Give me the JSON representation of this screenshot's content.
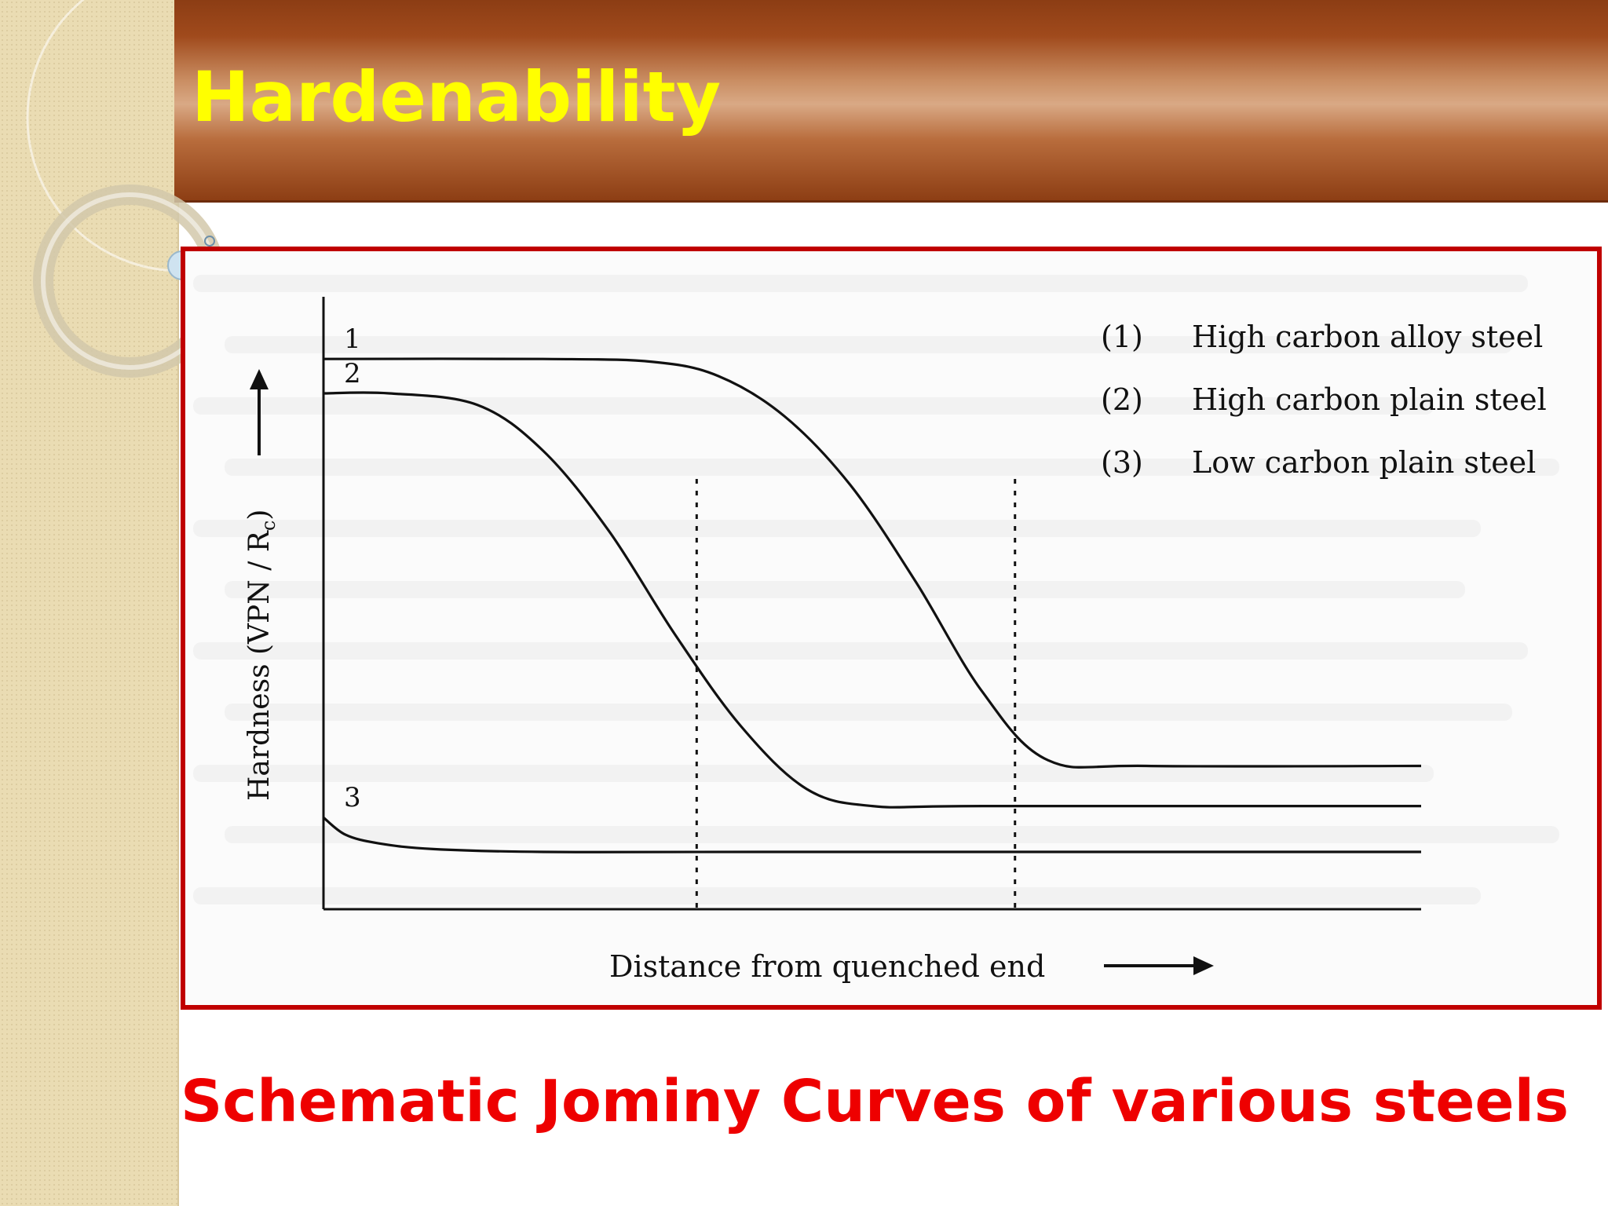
{
  "slide": {
    "title": "Hardenability",
    "caption": "Schematic Jominy Curves of various steels",
    "colors": {
      "title": "#ffff00",
      "caption": "#ee0000",
      "frame": "#c00000",
      "title_bar": "#a04a1c"
    }
  },
  "chart_data": {
    "type": "line",
    "title": "",
    "xlabel": "Distance from quenched end",
    "ylabel": "Hardness (VPN / R",
    "ylabel_subscript": "c",
    "ylabel_close": ")",
    "x_ticks": false,
    "y_ticks": false,
    "grid": false,
    "legend_position": "top-right",
    "legend": [
      {
        "num": "(1)",
        "label": "High carbon alloy steel"
      },
      {
        "num": "(2)",
        "label": "High carbon plain steel"
      },
      {
        "num": "(3)",
        "label": "Low carbon plain steel"
      }
    ],
    "series": [
      {
        "name": "1",
        "x": [
          0,
          0.2,
          0.3,
          0.36,
          0.42,
          0.48,
          0.54,
          0.6,
          0.66,
          0.75,
          1.0
        ],
        "y": [
          0.96,
          0.96,
          0.955,
          0.93,
          0.86,
          0.74,
          0.57,
          0.38,
          0.26,
          0.25,
          0.25
        ]
      },
      {
        "name": "2",
        "x": [
          0,
          0.06,
          0.14,
          0.2,
          0.26,
          0.32,
          0.38,
          0.44,
          0.5,
          0.6,
          1.0
        ],
        "y": [
          0.9,
          0.9,
          0.88,
          0.8,
          0.66,
          0.48,
          0.32,
          0.21,
          0.18,
          0.18,
          0.18
        ]
      },
      {
        "name": "3",
        "x": [
          0,
          0.02,
          0.05,
          0.1,
          0.2,
          0.4,
          1.0
        ],
        "y": [
          0.16,
          0.13,
          0.115,
          0.105,
          0.1,
          0.1,
          0.1
        ]
      }
    ],
    "reference_lines_x": [
      0.34,
      0.63
    ],
    "reference_line_style": "dotted"
  }
}
